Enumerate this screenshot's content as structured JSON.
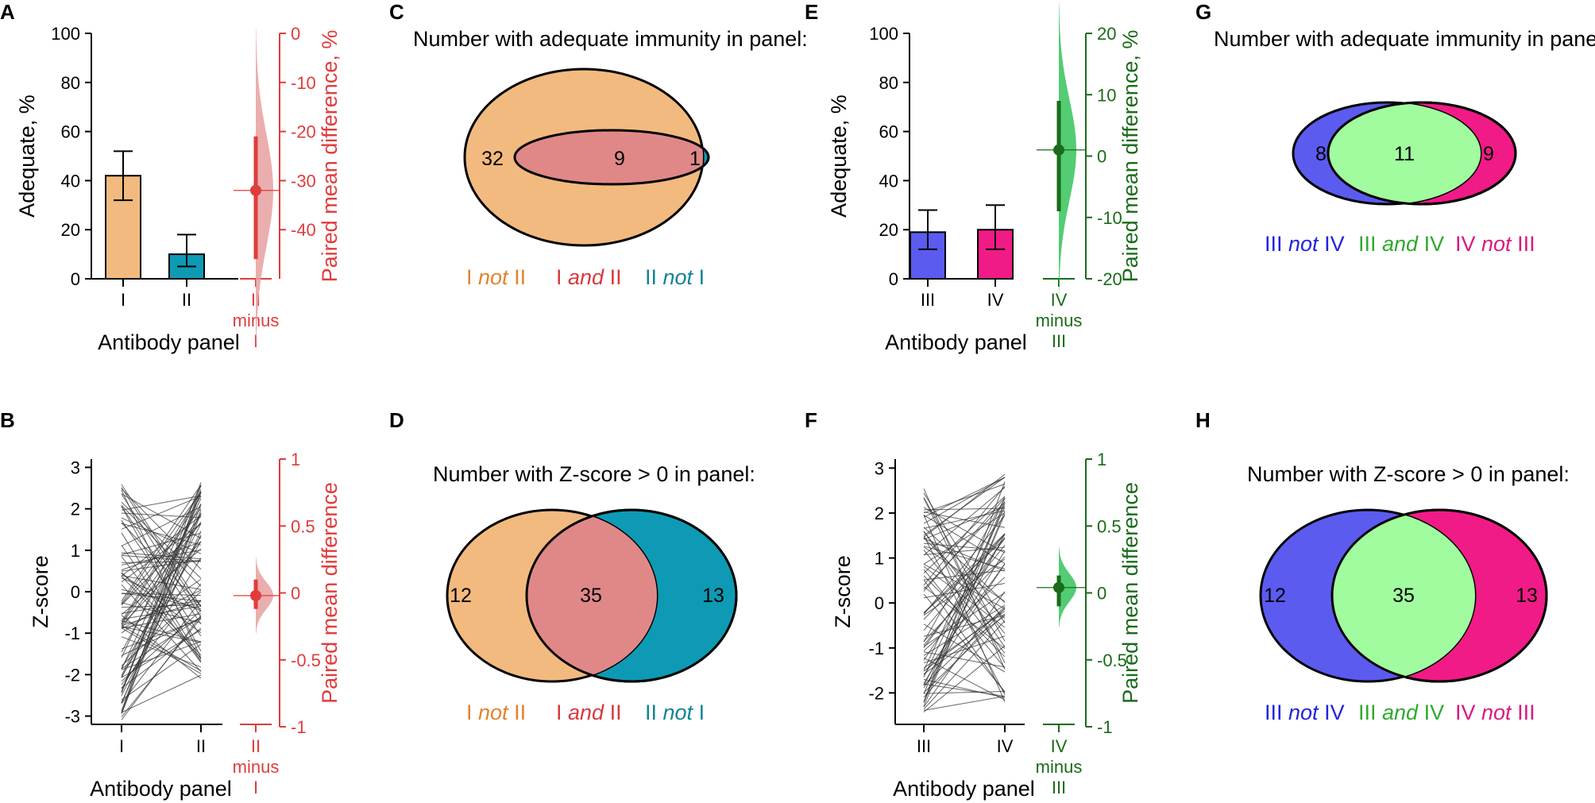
{
  "panel_letters": [
    "A",
    "B",
    "C",
    "D",
    "E",
    "F",
    "G",
    "H"
  ],
  "colors": {
    "orange": "#f2ba7f",
    "teal": "#0e9ab4",
    "pink_overlap": "#e08888",
    "red": "#e03c3c",
    "blue": "#5b5bf0",
    "magenta": "#f01b86",
    "lightgreen": "#a0fc9f",
    "green": "#1a6b1a",
    "green_fill": "#35c35a",
    "blue_text": "#2323e0",
    "green_text": "#2faa2f",
    "red_text": "#d9383e",
    "orange_text": "#e3822e",
    "teal_text": "#11839b"
  },
  "chart_data": [
    {
      "id": "A",
      "type": "bar",
      "categories": [
        "I",
        "II"
      ],
      "values": [
        42,
        10
      ],
      "errors": [
        [
          32,
          52
        ],
        [
          5,
          18
        ]
      ],
      "ylabel": "Adequate, %",
      "xlabel": "Antibody panel",
      "ylim": [
        0,
        100
      ],
      "yticks": [
        "0",
        "20",
        "40",
        "60",
        "80",
        "100"
      ],
      "diff": {
        "label_lines": [
          "II",
          "minus",
          "I"
        ],
        "ylabel": "Paired mean difference, %",
        "ylim": [
          -50,
          0
        ],
        "yticks": [
          "0",
          "-10",
          "-20",
          "-30",
          "-40"
        ],
        "mean": -32,
        "ci": [
          -46,
          -21
        ]
      }
    },
    {
      "id": "B",
      "type": "line",
      "categories": [
        "I",
        "II"
      ],
      "ylabel": "Z-score",
      "xlabel": "Antibody panel",
      "ylim": [
        -3.2,
        3.2
      ],
      "yticks": [
        "3",
        "2",
        "1",
        "0",
        "-1",
        "-2",
        "-3"
      ],
      "description_count": 95,
      "range_I": [
        -3.1,
        2.6
      ],
      "range_II": [
        -2.1,
        2.7
      ],
      "diff": {
        "label_lines": [
          "II",
          "minus",
          "I"
        ],
        "ylabel": "Paired mean difference",
        "ylim": [
          -1,
          1
        ],
        "yticks": [
          "1",
          "0.5",
          "0",
          "-0.5",
          "-1"
        ],
        "mean": -0.02,
        "ci": [
          -0.12,
          0.1
        ]
      }
    },
    {
      "id": "E",
      "type": "bar",
      "categories": [
        "III",
        "IV"
      ],
      "values": [
        19,
        20
      ],
      "errors": [
        [
          12,
          28
        ],
        [
          12,
          30
        ]
      ],
      "ylabel": "Adequate, %",
      "xlabel": "Antibody panel",
      "ylim": [
        0,
        100
      ],
      "yticks": [
        "0",
        "20",
        "40",
        "60",
        "80",
        "100"
      ],
      "diff": {
        "label_lines": [
          "IV",
          "minus",
          "III"
        ],
        "ylabel": "Paired mean difference, %",
        "ylim": [
          -20,
          20
        ],
        "yticks": [
          "20",
          "10",
          "0",
          "-10",
          "-20"
        ],
        "mean": 1,
        "ci": [
          -9,
          9
        ]
      }
    },
    {
      "id": "F",
      "type": "line",
      "categories": [
        "III",
        "IV"
      ],
      "ylabel": "Z-score",
      "xlabel": "Antibody panel",
      "ylim": [
        -2.7,
        3.2
      ],
      "yticks": [
        "3",
        "2",
        "1",
        "0",
        "-1",
        "-2"
      ],
      "description_count": 85,
      "range_I": [
        -2.6,
        2.6
      ],
      "range_II": [
        -2.2,
        2.9
      ],
      "diff": {
        "label_lines": [
          "IV",
          "minus",
          "III"
        ],
        "ylabel": "Paired mean difference",
        "ylim": [
          -1,
          1
        ],
        "yticks": [
          "1",
          "0.5",
          "0",
          "-0.5",
          "-1"
        ],
        "mean": 0.04,
        "ci": [
          -0.1,
          0.13
        ]
      }
    }
  ],
  "venns": [
    {
      "id": "C",
      "title": "Number with adequate immunity in panel:",
      "left_only": "32",
      "both": "9",
      "right_only": "1",
      "legend": [
        {
          "pre": "I ",
          "em": "not",
          "post": " II"
        },
        {
          "pre": "I ",
          "em": "and",
          "post": " II"
        },
        {
          "pre": "II ",
          "em": "not",
          "post": " I"
        }
      ]
    },
    {
      "id": "D",
      "title": "Number with Z-score > 0 in panel:",
      "left_only": "12",
      "both": "35",
      "right_only": "13",
      "legend": [
        {
          "pre": "I ",
          "em": "not",
          "post": " II"
        },
        {
          "pre": "I ",
          "em": "and",
          "post": " II"
        },
        {
          "pre": "II ",
          "em": "not",
          "post": " I"
        }
      ]
    },
    {
      "id": "G",
      "title": "Number with adequate immunity in panel:",
      "left_only": "8",
      "both": "11",
      "right_only": "9",
      "legend": [
        {
          "pre": "III ",
          "em": "not",
          "post": " IV"
        },
        {
          "pre": "III ",
          "em": "and",
          "post": " IV"
        },
        {
          "pre": "IV ",
          "em": "not",
          "post": " III"
        }
      ]
    },
    {
      "id": "H",
      "title": "Number with Z-score > 0 in panel:",
      "left_only": "12",
      "both": "35",
      "right_only": "13",
      "legend": [
        {
          "pre": "III ",
          "em": "not",
          "post": " IV"
        },
        {
          "pre": "III ",
          "em": "and",
          "post": " IV"
        },
        {
          "pre": "IV ",
          "em": "not",
          "post": " III"
        }
      ]
    }
  ]
}
